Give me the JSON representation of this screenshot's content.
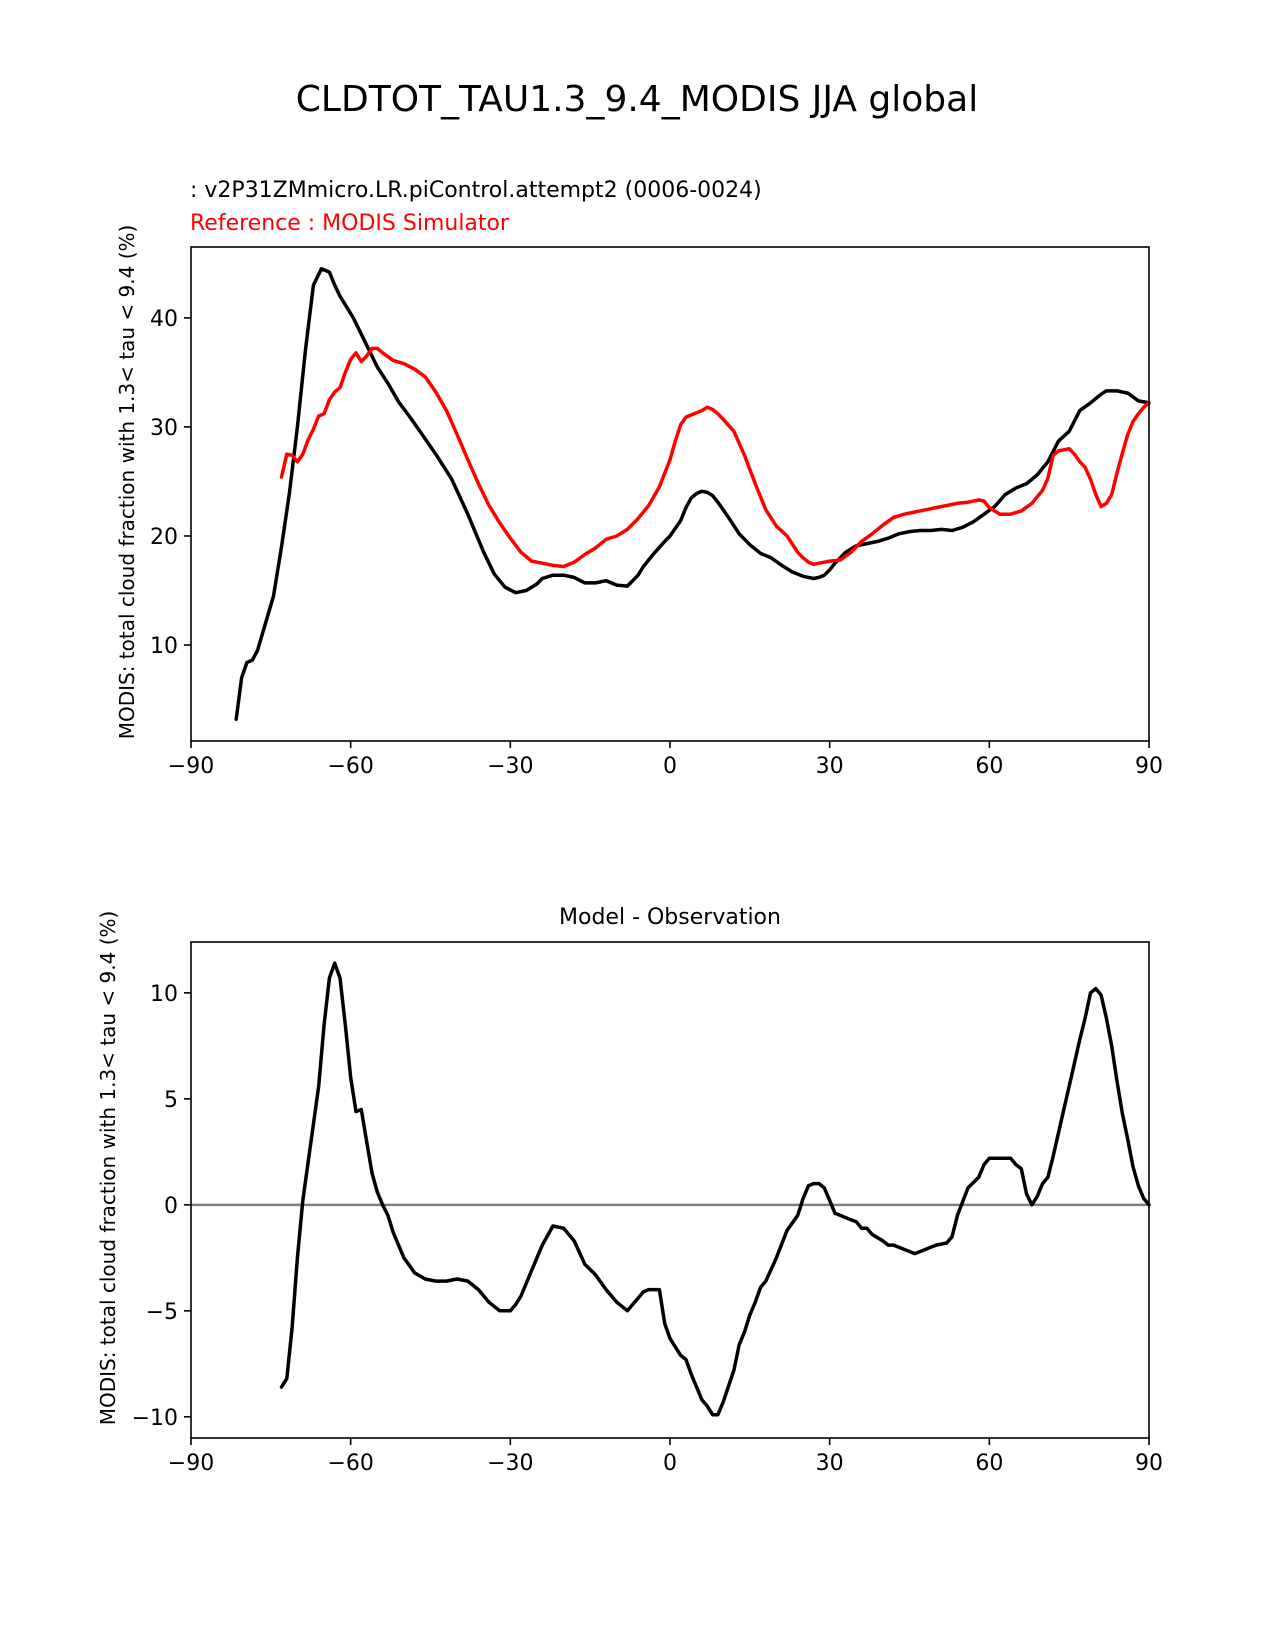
{
  "figure": {
    "title": "CLDTOT_TAU1.3_9.4_MODIS JJA global",
    "test_label": " : v2P31ZMmicro.LR.piControl.attempt2 (0006-0024)",
    "ref_label": "Reference : MODIS Simulator",
    "test_color": "#000000",
    "ref_color": "#ff0000",
    "zero_line_color": "#808080"
  },
  "chart_data": [
    {
      "type": "line",
      "title": "",
      "xlabel": "",
      "ylabel": "MODIS: total cloud fraction with 1.3< tau < 9.4 (%)",
      "xlim": [
        -90,
        90
      ],
      "ylim": [
        1.2,
        46.5
      ],
      "xticks": [
        -90,
        -60,
        -30,
        0,
        30,
        60,
        90
      ],
      "xtick_labels": [
        "−90",
        "−60",
        "−30",
        "0",
        "30",
        "60",
        "90"
      ],
      "yticks": [
        10,
        20,
        30,
        40
      ],
      "ytick_labels": [
        "10",
        "20",
        "30",
        "40"
      ],
      "series": [
        {
          "name": "test",
          "color": "#000000",
          "x": [
            -81.5,
            -80.5,
            -79.5,
            -78.5,
            -77.5,
            -76,
            -74.5,
            -73,
            -71.5,
            -70,
            -68.5,
            -67,
            -65.5,
            -64,
            -63,
            -62,
            -61,
            -59.5,
            -58,
            -56.5,
            -55,
            -53,
            -51,
            -49,
            -47,
            -44,
            -41,
            -38,
            -35,
            -33,
            -31,
            -29,
            -27,
            -25,
            -24,
            -22,
            -20,
            -18,
            -16,
            -14,
            -12,
            -10,
            -8,
            -6,
            -5,
            -3,
            -1,
            0,
            2,
            3,
            4,
            5,
            6,
            7,
            8,
            9,
            11,
            13,
            15,
            17,
            19,
            21,
            23,
            25,
            27,
            28,
            29,
            30,
            31,
            33,
            35,
            37,
            39,
            41,
            43,
            45,
            47,
            49,
            51,
            53,
            55,
            57,
            59,
            61,
            63,
            65,
            67,
            69,
            71,
            73,
            75,
            77,
            79,
            81,
            82,
            84,
            86,
            88,
            90
          ],
          "values": [
            3.2,
            7,
            8.4,
            8.6,
            9.5,
            12,
            14.5,
            19,
            24,
            30,
            37,
            43,
            44.5,
            44.2,
            43,
            42,
            41.2,
            40,
            38.5,
            37,
            35.5,
            34,
            32.3,
            31,
            29.6,
            27.5,
            25.2,
            22,
            18.5,
            16.5,
            15.3,
            14.8,
            15,
            15.6,
            16.1,
            16.4,
            16.4,
            16.2,
            15.7,
            15.7,
            15.9,
            15.5,
            15.4,
            16.4,
            17.2,
            18.4,
            19.5,
            20,
            21.4,
            22.6,
            23.5,
            23.9,
            24.1,
            24,
            23.7,
            23.1,
            21.7,
            20.2,
            19.2,
            18.4,
            18,
            17.3,
            16.7,
            16.3,
            16.1,
            16.2,
            16.4,
            16.9,
            17.5,
            18.5,
            19.1,
            19.3,
            19.5,
            19.8,
            20.2,
            20.4,
            20.5,
            20.5,
            20.6,
            20.5,
            20.8,
            21.3,
            22,
            22.7,
            23.8,
            24.4,
            24.8,
            25.6,
            26.8,
            28.7,
            29.6,
            31.5,
            32.2,
            33,
            33.3,
            33.3,
            33.1,
            32.4,
            32.2
          ]
        },
        {
          "name": "reference",
          "color": "#ff0000",
          "x": [
            -73,
            -72,
            -71,
            -70,
            -69,
            -68,
            -67,
            -66,
            -65,
            -64,
            -63,
            -62,
            -61,
            -60,
            -59,
            -58,
            -57,
            -56,
            -55,
            -54,
            -52,
            -50,
            -48,
            -46,
            -44,
            -42,
            -40,
            -38,
            -36,
            -34,
            -32,
            -30,
            -28,
            -26,
            -24,
            -22,
            -20,
            -18,
            -16,
            -14,
            -12,
            -10,
            -8,
            -6,
            -4,
            -2,
            0,
            1,
            2,
            3,
            4,
            5,
            6,
            7,
            8,
            9,
            10,
            12,
            14,
            16,
            18,
            20,
            22,
            24,
            25,
            26,
            27,
            28,
            29,
            30,
            32,
            34,
            36,
            38,
            40,
            42,
            44,
            46,
            48,
            50,
            52,
            54,
            56,
            58,
            59,
            60,
            62,
            64,
            66,
            68,
            70,
            71,
            72,
            73,
            74,
            75,
            76,
            77,
            78,
            79,
            80,
            81,
            82,
            83,
            84,
            85,
            86,
            87,
            88,
            89,
            90
          ],
          "values": [
            25.4,
            27.5,
            27.4,
            26.8,
            27.5,
            28.8,
            29.8,
            31,
            31.2,
            32.5,
            33.2,
            33.6,
            35,
            36.2,
            36.8,
            36,
            36.5,
            37.2,
            37.2,
            36.8,
            36.1,
            35.8,
            35.3,
            34.6,
            33.2,
            31.5,
            29.3,
            27,
            24.8,
            22.8,
            21.2,
            19.8,
            18.5,
            17.7,
            17.5,
            17.3,
            17.2,
            17.6,
            18.3,
            18.9,
            19.7,
            20,
            20.6,
            21.6,
            22.8,
            24.5,
            27,
            28.7,
            30.2,
            30.9,
            31.1,
            31.3,
            31.5,
            31.8,
            31.6,
            31.2,
            30.7,
            29.6,
            27.4,
            24.8,
            22.4,
            20.9,
            20,
            18.5,
            18,
            17.6,
            17.4,
            17.5,
            17.6,
            17.7,
            17.8,
            18.5,
            19.5,
            20.2,
            21,
            21.7,
            22,
            22.2,
            22.4,
            22.6,
            22.8,
            23,
            23.1,
            23.3,
            23.2,
            22.6,
            22,
            22,
            22.3,
            23,
            24.2,
            25.3,
            27.4,
            27.8,
            27.9,
            28,
            27.5,
            26.8,
            26.3,
            25.2,
            23.8,
            22.7,
            23,
            23.8,
            25.8,
            27.6,
            29.3,
            30.5,
            31.2,
            31.8,
            32.2
          ]
        }
      ]
    },
    {
      "type": "line",
      "title": "Model - Observation",
      "xlabel": "",
      "ylabel": "MODIS: total cloud fraction with 1.3< tau < 9.4 (%)",
      "xlim": [
        -90,
        90
      ],
      "ylim": [
        -11,
        12.4
      ],
      "xticks": [
        -90,
        -60,
        -30,
        0,
        30,
        60,
        90
      ],
      "xtick_labels": [
        "−90",
        "−60",
        "−30",
        "0",
        "30",
        "60",
        "90"
      ],
      "yticks": [
        -10,
        -5,
        0,
        5,
        10
      ],
      "ytick_labels": [
        "−10",
        "−5",
        "0",
        "5",
        "10"
      ],
      "zero_line": true,
      "series": [
        {
          "name": "difference",
          "color": "#000000",
          "x": [
            -73,
            -72,
            -71,
            -70,
            -69,
            -68,
            -67,
            -66,
            -65,
            -64,
            -63,
            -62,
            -61,
            -60,
            -59,
            -58,
            -57,
            -56,
            -55,
            -54,
            -53,
            -52,
            -50,
            -48,
            -46,
            -44,
            -42,
            -40,
            -38,
            -36,
            -34,
            -32,
            -30,
            -29,
            -28,
            -26,
            -24,
            -22,
            -20,
            -18,
            -16,
            -14,
            -12,
            -10,
            -8,
            -6,
            -5,
            -4,
            -2,
            -1,
            0,
            2,
            3,
            4,
            5,
            6,
            7,
            8,
            9,
            10,
            12,
            13,
            14,
            15,
            16,
            17,
            18,
            20,
            22,
            24,
            25,
            26,
            27,
            28,
            29,
            30,
            31,
            32,
            33,
            34,
            35,
            36,
            37,
            38,
            40,
            41,
            42,
            44,
            46,
            48,
            50,
            52,
            53,
            54,
            56,
            58,
            59,
            60,
            62,
            63,
            64,
            65,
            66,
            67,
            68,
            69,
            70,
            71,
            72,
            73,
            74,
            75,
            76,
            77,
            78,
            79,
            80,
            81,
            82,
            83,
            84,
            85,
            86,
            87,
            88,
            89,
            90
          ],
          "values": [
            -8.6,
            -8.2,
            -5.8,
            -2.5,
            0.2,
            2,
            3.8,
            5.6,
            8.5,
            10.7,
            11.4,
            10.7,
            8.5,
            6,
            4.4,
            4.5,
            3,
            1.5,
            0.6,
            0,
            -0.5,
            -1.3,
            -2.5,
            -3.2,
            -3.5,
            -3.6,
            -3.6,
            -3.5,
            -3.6,
            -4,
            -4.6,
            -5,
            -5,
            -4.7,
            -4.3,
            -3.1,
            -1.9,
            -1,
            -1.1,
            -1.7,
            -2.8,
            -3.3,
            -4,
            -4.6,
            -5,
            -4.4,
            -4.1,
            -4,
            -4,
            -5.6,
            -6.3,
            -7.1,
            -7.3,
            -8,
            -8.6,
            -9.2,
            -9.5,
            -9.9,
            -9.9,
            -9.3,
            -7.8,
            -6.6,
            -6,
            -5.2,
            -4.6,
            -3.9,
            -3.6,
            -2.5,
            -1.2,
            -0.5,
            0.3,
            0.9,
            1,
            1,
            0.8,
            0.2,
            -0.4,
            -0.5,
            -0.6,
            -0.7,
            -0.8,
            -1.1,
            -1.1,
            -1.4,
            -1.7,
            -1.9,
            -1.9,
            -2.1,
            -2.3,
            -2.1,
            -1.9,
            -1.8,
            -1.5,
            -0.5,
            0.8,
            1.3,
            1.9,
            2.2,
            2.2,
            2.2,
            2.2,
            1.9,
            1.7,
            0.5,
            0,
            0.4,
            1,
            1.3,
            2.3,
            3.4,
            4.5,
            5.6,
            6.7,
            7.8,
            8.8,
            10,
            10.2,
            9.9,
            8.8,
            7.5,
            5.8,
            4.3,
            3.1,
            1.8,
            0.9,
            0.3,
            0
          ]
        }
      ]
    }
  ]
}
